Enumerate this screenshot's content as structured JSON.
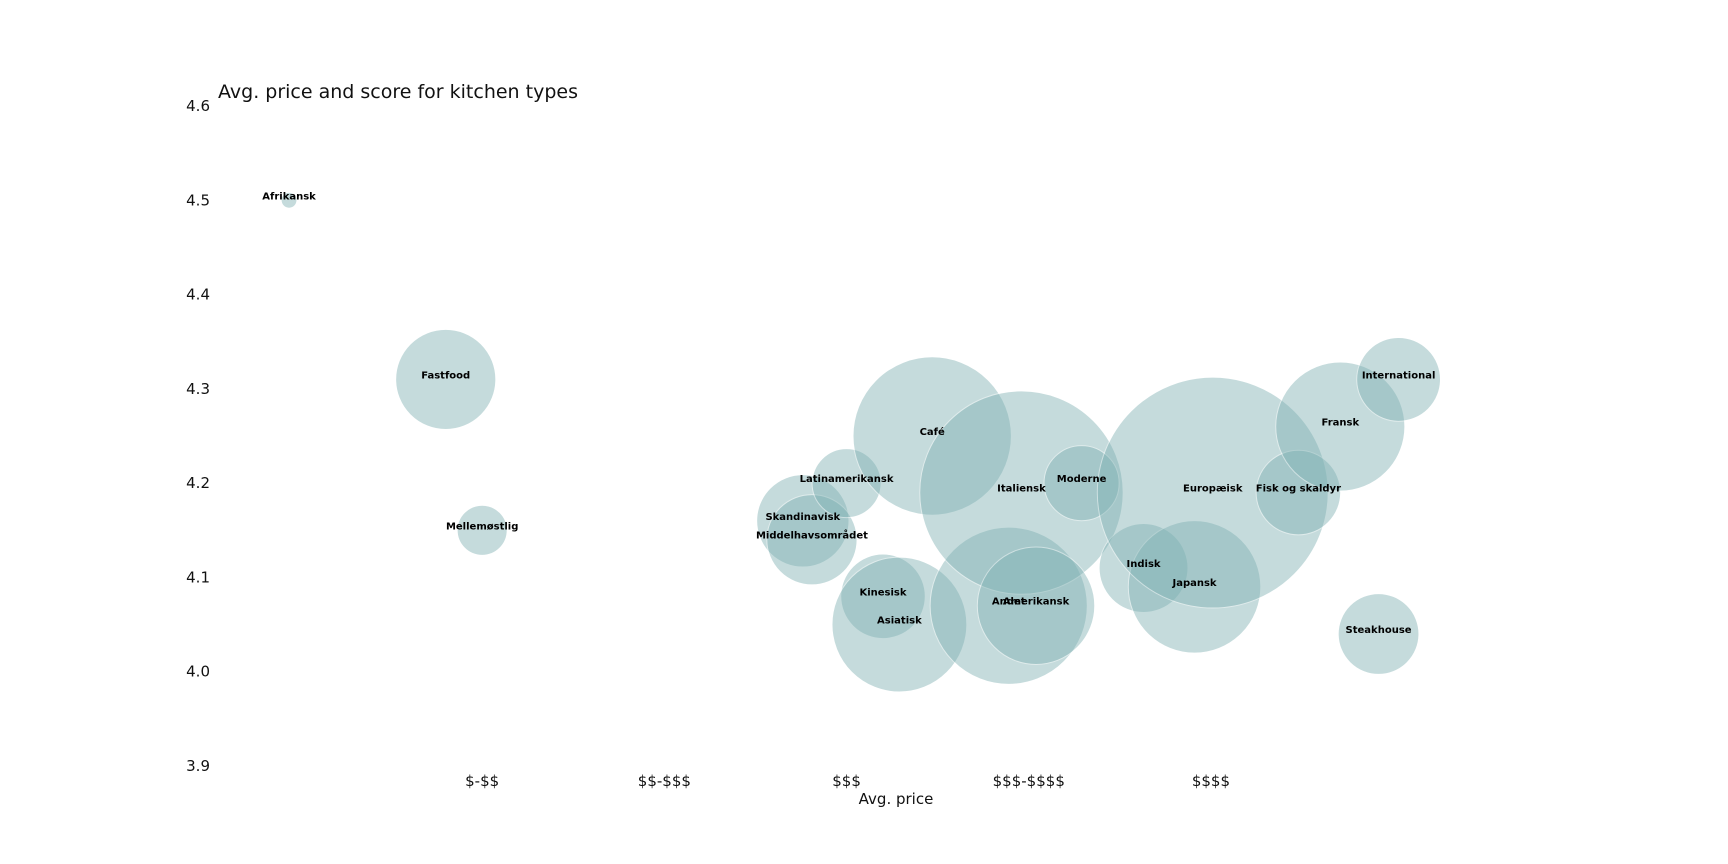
{
  "chart_data": {
    "type": "scatter",
    "title": "Avg. price and score for kitchen types",
    "xlabel": "Avg. price",
    "ylabel": "",
    "xlim": [
      0.55,
      7.85
    ],
    "ylim": [
      3.9,
      4.6
    ],
    "x_ticks": [
      {
        "value": 2,
        "label": "$-$$"
      },
      {
        "value": 3,
        "label": "$$-$$$"
      },
      {
        "value": 4,
        "label": "$$$"
      },
      {
        "value": 5,
        "label": "$$$-$$$$"
      },
      {
        "value": 6,
        "label": "$$$$"
      }
    ],
    "y_ticks": [
      {
        "value": 3.9,
        "label": "3.9"
      },
      {
        "value": 4.0,
        "label": "4.0"
      },
      {
        "value": 4.1,
        "label": "4.1"
      },
      {
        "value": 4.2,
        "label": "4.2"
      },
      {
        "value": 4.3,
        "label": "4.3"
      },
      {
        "value": 4.4,
        "label": "4.4"
      },
      {
        "value": 4.5,
        "label": "4.5"
      },
      {
        "value": 4.6,
        "label": "4.6"
      }
    ],
    "grid": false,
    "bubble_color": "#7fb1b3",
    "bubble_size_note": "relative count",
    "points": [
      {
        "label": "Afrikansk",
        "x": 0.94,
        "y": 4.5,
        "size": 2
      },
      {
        "label": "Fastfood",
        "x": 1.8,
        "y": 4.31,
        "size": 80
      },
      {
        "label": "Mellemøstlig",
        "x": 2.0,
        "y": 4.15,
        "size": 20
      },
      {
        "label": "Skandinavisk",
        "x": 3.76,
        "y": 4.16,
        "size": 68
      },
      {
        "label": "Middelhavsområdet",
        "x": 3.81,
        "y": 4.14,
        "size": 65
      },
      {
        "label": "Latinamerikansk",
        "x": 4.0,
        "y": 4.2,
        "size": 38
      },
      {
        "label": "Kinesisk",
        "x": 4.2,
        "y": 4.08,
        "size": 57
      },
      {
        "label": "Asiatisk",
        "x": 4.29,
        "y": 4.05,
        "size": 145
      },
      {
        "label": "Café",
        "x": 4.47,
        "y": 4.25,
        "size": 200
      },
      {
        "label": "Andet",
        "x": 4.89,
        "y": 4.07,
        "size": 197
      },
      {
        "label": "Italiensk",
        "x": 4.96,
        "y": 4.19,
        "size": 330
      },
      {
        "label": "Amerikansk",
        "x": 5.04,
        "y": 4.07,
        "size": 110
      },
      {
        "label": "Moderne",
        "x": 5.29,
        "y": 4.2,
        "size": 45
      },
      {
        "label": "Indisk",
        "x": 5.63,
        "y": 4.11,
        "size": 63
      },
      {
        "label": "Japansk",
        "x": 5.91,
        "y": 4.09,
        "size": 140
      },
      {
        "label": "Europæisk",
        "x": 6.01,
        "y": 4.19,
        "size": 425
      },
      {
        "label": "Fisk og skaldyr",
        "x": 6.48,
        "y": 4.19,
        "size": 57
      },
      {
        "label": "Fransk",
        "x": 6.71,
        "y": 4.26,
        "size": 133
      },
      {
        "label": "International",
        "x": 7.03,
        "y": 4.31,
        "size": 56
      },
      {
        "label": "Steakhouse",
        "x": 6.92,
        "y": 4.04,
        "size": 52
      }
    ]
  }
}
